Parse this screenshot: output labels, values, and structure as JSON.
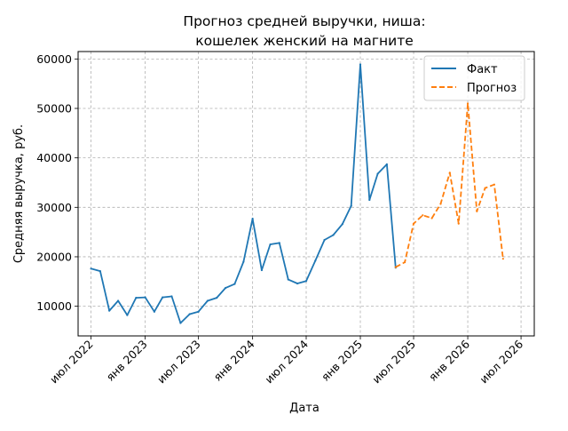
{
  "chart_data": {
    "type": "line",
    "title_lines": [
      "Прогноз средней выручки, ниша:",
      "кошелек женский на магните"
    ],
    "xlabel": "Дата",
    "ylabel": "Средняя выручка, руб.",
    "grid": true,
    "legend_placement": "top-right",
    "ylim": [
      4000,
      61500
    ],
    "xlim": [
      "2022-05-18",
      "2026-08-15"
    ],
    "y_ticks": [
      10000,
      20000,
      30000,
      40000,
      50000,
      60000
    ],
    "y_tick_labels": [
      "10000",
      "20000",
      "30000",
      "40000",
      "50000",
      "60000"
    ],
    "x_ticks": [
      "2022-07-01",
      "2023-01-01",
      "2023-07-01",
      "2024-01-01",
      "2024-07-01",
      "2025-01-01",
      "2025-07-01",
      "2026-01-01",
      "2026-07-01"
    ],
    "x_tick_labels": [
      "июл 2022",
      "янв 2023",
      "июл 2023",
      "янв 2024",
      "июл 2024",
      "янв 2025",
      "июл 2025",
      "янв 2026",
      "июл 2026"
    ],
    "series": [
      {
        "name": "Факт",
        "color": "#1f77b4",
        "style": "solid",
        "points": [
          [
            "2022-07-01",
            17600
          ],
          [
            "2022-08-01",
            17100
          ],
          [
            "2022-09-01",
            9100
          ],
          [
            "2022-10-01",
            11100
          ],
          [
            "2022-11-01",
            8200
          ],
          [
            "2022-12-01",
            11700
          ],
          [
            "2023-01-01",
            11800
          ],
          [
            "2023-02-01",
            8900
          ],
          [
            "2023-03-01",
            11800
          ],
          [
            "2023-04-01",
            12000
          ],
          [
            "2023-05-01",
            6600
          ],
          [
            "2023-06-01",
            8400
          ],
          [
            "2023-07-01",
            8900
          ],
          [
            "2023-08-01",
            11100
          ],
          [
            "2023-09-01",
            11700
          ],
          [
            "2023-10-01",
            13700
          ],
          [
            "2023-11-01",
            14500
          ],
          [
            "2023-12-01",
            19000
          ],
          [
            "2024-01-01",
            27700
          ],
          [
            "2024-02-01",
            17300
          ],
          [
            "2024-03-01",
            22500
          ],
          [
            "2024-04-01",
            22800
          ],
          [
            "2024-05-01",
            15400
          ],
          [
            "2024-06-01",
            14600
          ],
          [
            "2024-07-01",
            15100
          ],
          [
            "2024-08-01",
            19200
          ],
          [
            "2024-09-01",
            23400
          ],
          [
            "2024-10-01",
            24400
          ],
          [
            "2024-11-01",
            26600
          ],
          [
            "2024-12-01",
            30300
          ],
          [
            "2025-01-01",
            58900
          ],
          [
            "2025-02-01",
            31500
          ],
          [
            "2025-03-01",
            36800
          ],
          [
            "2025-04-01",
            38700
          ],
          [
            "2025-05-01",
            17800
          ]
        ]
      },
      {
        "name": "Прогноз",
        "color": "#ff7f0e",
        "style": "dashed",
        "points": [
          [
            "2025-05-01",
            17900
          ],
          [
            "2025-06-01",
            18900
          ],
          [
            "2025-07-01",
            26700
          ],
          [
            "2025-08-01",
            28400
          ],
          [
            "2025-09-01",
            27800
          ],
          [
            "2025-10-01",
            30700
          ],
          [
            "2025-11-01",
            37000
          ],
          [
            "2025-12-01",
            26700
          ],
          [
            "2026-01-01",
            51000
          ],
          [
            "2026-02-01",
            29200
          ],
          [
            "2026-03-01",
            33900
          ],
          [
            "2026-04-01",
            34600
          ],
          [
            "2026-05-01",
            19600
          ]
        ]
      }
    ]
  }
}
